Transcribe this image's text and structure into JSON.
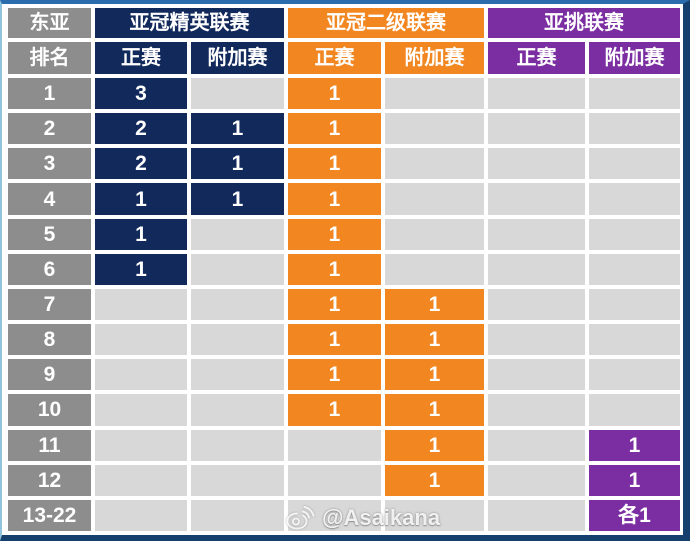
{
  "colors": {
    "elite_navy": "#12295B",
    "two_orange": "#F28621",
    "challenge_purple": "#7B2EA1",
    "rank_gray": "#8D8D8D",
    "empty_gray": "#D8D8D8",
    "frame_blue_top": "#2B6DAC",
    "frame_blue_light": "#8FC3DE",
    "frame_blue_dark": "#15406E"
  },
  "table": {
    "region_label": "东亚",
    "rank_label": "排名",
    "groups": [
      {
        "id": "elite",
        "name": "亚冠精英联赛"
      },
      {
        "id": "two",
        "name": "亚冠二级联赛"
      },
      {
        "id": "challenge",
        "name": "亚挑联赛"
      }
    ],
    "sub_headers": [
      "正赛",
      "附加赛",
      "正赛",
      "附加赛",
      "正赛",
      "附加赛"
    ],
    "column_group_of_cell": [
      "elite",
      "elite",
      "two",
      "two",
      "challenge",
      "challenge"
    ],
    "rows": [
      {
        "rank": "1",
        "cells": [
          "3",
          "",
          "1",
          "",
          "",
          ""
        ]
      },
      {
        "rank": "2",
        "cells": [
          "2",
          "1",
          "1",
          "",
          "",
          ""
        ]
      },
      {
        "rank": "3",
        "cells": [
          "2",
          "1",
          "1",
          "",
          "",
          ""
        ]
      },
      {
        "rank": "4",
        "cells": [
          "1",
          "1",
          "1",
          "",
          "",
          ""
        ]
      },
      {
        "rank": "5",
        "cells": [
          "1",
          "",
          "1",
          "",
          "",
          ""
        ]
      },
      {
        "rank": "6",
        "cells": [
          "1",
          "",
          "1",
          "",
          "",
          ""
        ]
      },
      {
        "rank": "7",
        "cells": [
          "",
          "",
          "1",
          "1",
          "",
          ""
        ]
      },
      {
        "rank": "8",
        "cells": [
          "",
          "",
          "1",
          "1",
          "",
          ""
        ]
      },
      {
        "rank": "9",
        "cells": [
          "",
          "",
          "1",
          "1",
          "",
          ""
        ]
      },
      {
        "rank": "10",
        "cells": [
          "",
          "",
          "1",
          "1",
          "",
          ""
        ]
      },
      {
        "rank": "11",
        "cells": [
          "",
          "",
          "",
          "1",
          "",
          "1"
        ]
      },
      {
        "rank": "12",
        "cells": [
          "",
          "",
          "",
          "1",
          "",
          "1"
        ]
      },
      {
        "rank": "13-22",
        "cells": [
          "",
          "",
          "",
          "",
          "",
          "各1"
        ]
      }
    ]
  },
  "watermark": {
    "icon": "weibo-icon",
    "handle": "@Asaikana"
  },
  "chart_data": {
    "type": "table",
    "title": "东亚 slots table",
    "columns": [
      "排名",
      "亚冠精英联赛 正赛",
      "亚冠精英联赛 附加赛",
      "亚冠二级联赛 正赛",
      "亚冠二级联赛 附加赛",
      "亚挑联赛 正赛",
      "亚挑联赛 附加赛"
    ],
    "rows": [
      [
        "1",
        "3",
        "",
        "1",
        "",
        "",
        ""
      ],
      [
        "2",
        "2",
        "1",
        "1",
        "",
        "",
        ""
      ],
      [
        "3",
        "2",
        "1",
        "1",
        "",
        "",
        ""
      ],
      [
        "4",
        "1",
        "1",
        "1",
        "",
        "",
        ""
      ],
      [
        "5",
        "1",
        "",
        "1",
        "",
        "",
        ""
      ],
      [
        "6",
        "1",
        "",
        "1",
        "",
        "",
        ""
      ],
      [
        "7",
        "",
        "",
        "1",
        "1",
        "",
        ""
      ],
      [
        "8",
        "",
        "",
        "1",
        "1",
        "",
        ""
      ],
      [
        "9",
        "",
        "",
        "1",
        "1",
        "",
        ""
      ],
      [
        "10",
        "",
        "",
        "1",
        "1",
        "",
        ""
      ],
      [
        "11",
        "",
        "",
        "",
        "1",
        "",
        "1"
      ],
      [
        "12",
        "",
        "",
        "",
        "1",
        "",
        "1"
      ],
      [
        "13-22",
        "",
        "",
        "",
        "",
        "",
        "各1"
      ]
    ]
  }
}
